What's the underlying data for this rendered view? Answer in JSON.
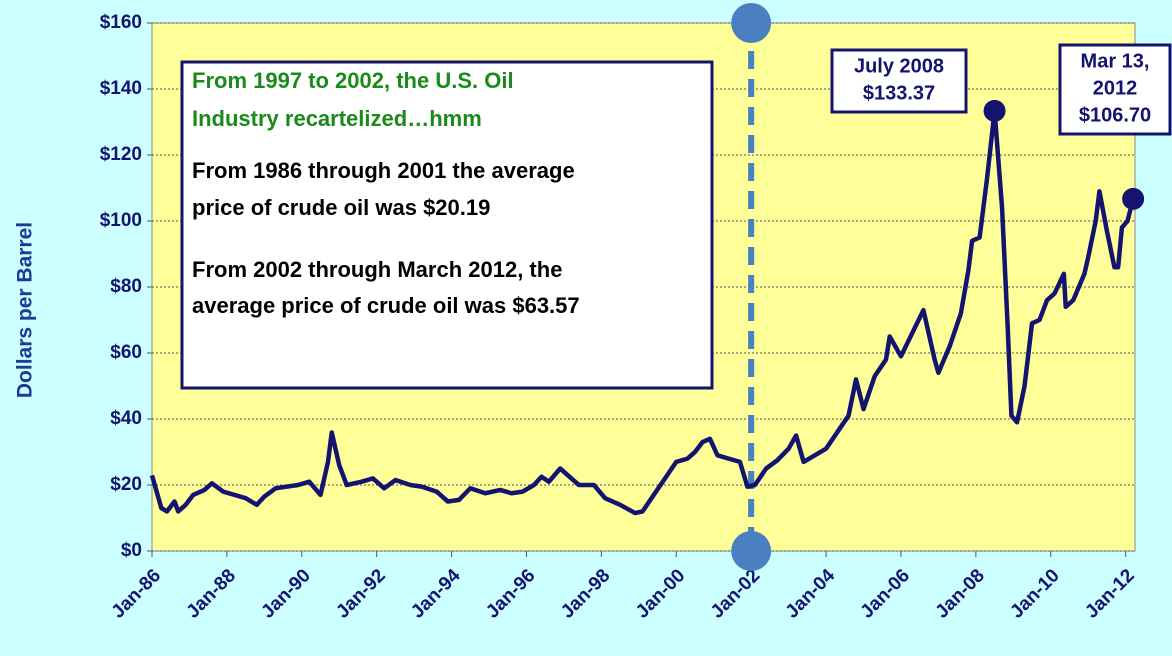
{
  "chart_data": {
    "type": "line",
    "y_label": "Dollars per Barrel",
    "xlim": [
      1986,
      2012.25
    ],
    "xticks": [
      {
        "value": 1986,
        "label": "Jan-86"
      },
      {
        "value": 1988,
        "label": "Jan-88"
      },
      {
        "value": 1990,
        "label": "Jan-90"
      },
      {
        "value": 1992,
        "label": "Jan-92"
      },
      {
        "value": 1994,
        "label": "Jan-94"
      },
      {
        "value": 1996,
        "label": "Jan-96"
      },
      {
        "value": 1998,
        "label": "Jan-98"
      },
      {
        "value": 2000,
        "label": "Jan-00"
      },
      {
        "value": 2002,
        "label": "Jan-02"
      },
      {
        "value": 2004,
        "label": "Jan-04"
      },
      {
        "value": 2006,
        "label": "Jan-06"
      },
      {
        "value": 2008,
        "label": "Jan-08"
      },
      {
        "value": 2010,
        "label": "Jan-10"
      },
      {
        "value": 2012,
        "label": "Jan-12"
      }
    ],
    "ylim": [
      0,
      160
    ],
    "yticks": [
      {
        "value": 0,
        "label": "$0"
      },
      {
        "value": 20,
        "label": "$20"
      },
      {
        "value": 40,
        "label": "$40"
      },
      {
        "value": 60,
        "label": "$60"
      },
      {
        "value": 80,
        "label": "$80"
      },
      {
        "value": 100,
        "label": "$100"
      },
      {
        "value": 120,
        "label": "$120"
      },
      {
        "value": 140,
        "label": "$140"
      },
      {
        "value": 160,
        "label": "$160"
      }
    ],
    "grid": true,
    "reference_line_x": 2002,
    "x": [
      1986.0,
      1986.25,
      1986.4,
      1986.6,
      1986.7,
      1986.9,
      1987.1,
      1987.4,
      1987.6,
      1987.9,
      1988.2,
      1988.5,
      1988.8,
      1989.0,
      1989.3,
      1989.6,
      1989.9,
      1990.2,
      1990.5,
      1990.7,
      1990.8,
      1991.0,
      1991.2,
      1991.6,
      1991.9,
      1992.2,
      1992.5,
      1992.9,
      1993.2,
      1993.6,
      1993.9,
      1994.2,
      1994.5,
      1994.9,
      1995.3,
      1995.6,
      1995.9,
      1996.2,
      1996.4,
      1996.6,
      1996.9,
      1997.2,
      1997.4,
      1997.8,
      1998.1,
      1998.5,
      1998.9,
      1999.1,
      1999.4,
      1999.7,
      2000.0,
      2000.3,
      2000.5,
      2000.7,
      2000.9,
      2001.1,
      2001.4,
      2001.7,
      2001.9,
      2002.1,
      2002.4,
      2002.7,
      2003.0,
      2003.2,
      2003.4,
      2003.7,
      2004.0,
      2004.3,
      2004.6,
      2004.8,
      2005.0,
      2005.3,
      2005.6,
      2005.7,
      2006.0,
      2006.3,
      2006.6,
      2006.9,
      2007.0,
      2007.3,
      2007.6,
      2007.8,
      2007.9,
      2008.1,
      2008.3,
      2008.5,
      2008.7,
      2008.85,
      2008.95,
      2009.1,
      2009.3,
      2009.5,
      2009.7,
      2009.9,
      2010.1,
      2010.35,
      2010.4,
      2010.6,
      2010.9,
      2011.0,
      2011.2,
      2011.3,
      2011.5,
      2011.7,
      2011.8,
      2011.9,
      2012.05,
      2012.2
    ],
    "series": [
      {
        "color": "#141470",
        "values": [
          22.9,
          13,
          12,
          15,
          12,
          14,
          17,
          18.5,
          20.5,
          18,
          17,
          16,
          14,
          16.5,
          19,
          19.5,
          20,
          21,
          17,
          27,
          35.9,
          26,
          20,
          21,
          22,
          19,
          21.5,
          20,
          19.5,
          18,
          15,
          15.5,
          19,
          17.5,
          18.5,
          17.5,
          18,
          20,
          22.5,
          21,
          25,
          22,
          20,
          20,
          16,
          14,
          11.5,
          12,
          17,
          22,
          27,
          28,
          30,
          33,
          34,
          29,
          28,
          27,
          19.5,
          20,
          25,
          27.5,
          31,
          35,
          27,
          29,
          31,
          36,
          41,
          52,
          43,
          53,
          58,
          65,
          59,
          66,
          73,
          58,
          54,
          62,
          72,
          85,
          94,
          95,
          113,
          133.37,
          104,
          68,
          41,
          39,
          50,
          69,
          70,
          76,
          78,
          84,
          74,
          76,
          84,
          89,
          100,
          109,
          97,
          86,
          86,
          98,
          100,
          106.7
        ]
      }
    ],
    "annotations": [
      "From 1997 to 2002, the U.S. Oil",
      "Industry recartelized…hmm",
      "From 1986 through 2001 the average",
      "price of crude oil was $20.19",
      "From 2002 through March 2012, the",
      "average price of crude oil was $63.57"
    ],
    "callouts": [
      {
        "lines": [
          "July 2008",
          "$133.37"
        ],
        "point": 85
      },
      {
        "lines": [
          "Mar 13,",
          "2012",
          "$106.70"
        ],
        "point": 107
      }
    ]
  }
}
